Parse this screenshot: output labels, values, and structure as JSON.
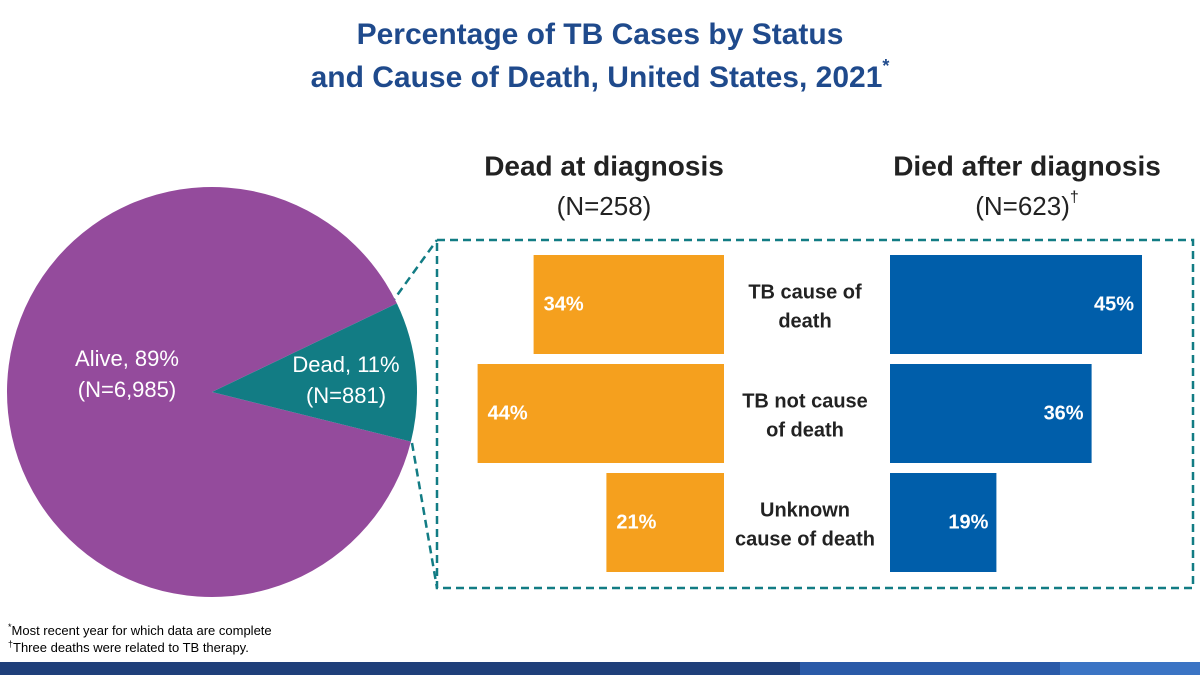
{
  "title_lines": [
    "Percentage of TB Cases by Status",
    "and Cause of Death, United States, 2021"
  ],
  "title_mark": "*",
  "footnotes": [
    {
      "mark": "*",
      "text": "Most recent year for which data are complete"
    },
    {
      "mark": "†",
      "text": "Three deaths were related to TB therapy."
    }
  ],
  "chart_data": [
    {
      "type": "pie",
      "categories": [
        "Alive",
        "Dead"
      ],
      "values": [
        89,
        11
      ],
      "value_labels": [
        "Alive, 89%",
        "Dead, 11%"
      ],
      "count_labels": [
        "(N=6,985)",
        "(N=881)"
      ],
      "colors": [
        "#944b9c",
        "#127c84"
      ]
    },
    {
      "type": "bar",
      "direction": "left",
      "title": "Dead at diagnosis",
      "subtitle": "(N=258)",
      "categories": [
        [
          "TB cause of",
          "death"
        ],
        [
          "TB not cause",
          "of death"
        ],
        [
          "Unknown",
          "cause of death"
        ]
      ],
      "values": [
        34,
        44,
        21
      ],
      "value_labels": [
        "34%",
        "44%",
        "21%"
      ],
      "color": "#f5a01e"
    },
    {
      "type": "bar",
      "direction": "right",
      "title": "Died after diagnosis",
      "subtitle": "(N=623)",
      "subtitle_mark": "†",
      "values": [
        45,
        36,
        19
      ],
      "value_labels": [
        "45%",
        "36%",
        "19%"
      ],
      "color": "#005eaa"
    }
  ]
}
